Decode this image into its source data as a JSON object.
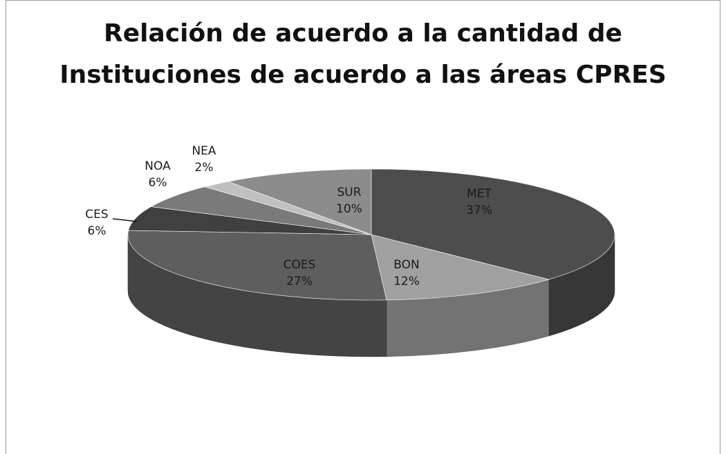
{
  "chart_data": {
    "type": "pie",
    "title": [
      "Relación de acuerdo a la cantidad de",
      "Instituciones de acuerdo a las áreas CPRES"
    ],
    "categories": [
      "MET",
      "BON",
      "COES",
      "CES",
      "NOA",
      "NEA",
      "SUR"
    ],
    "values": [
      37,
      12,
      27,
      6,
      6,
      2,
      10
    ],
    "value_labels": [
      "37%",
      "12%",
      "27%",
      "6%",
      "6%",
      "2%",
      "10%"
    ],
    "colors": [
      "#4d4d4d",
      "#a0a0a0",
      "#5e5e5e",
      "#404040",
      "#7a7a7a",
      "#c0c0c0",
      "#8c8c8c"
    ]
  }
}
